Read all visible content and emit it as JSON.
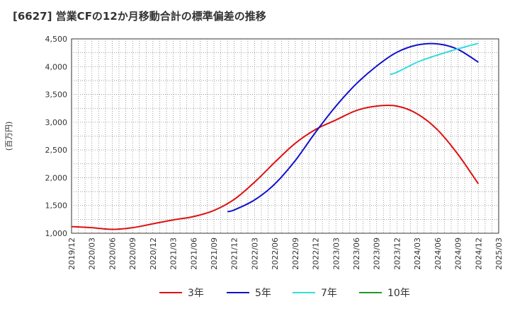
{
  "chart_data": {
    "type": "line",
    "title": "[6627]  営業CFの12か月移動合計の標準偏差の推移",
    "ylabel": "(百万円)",
    "ylim": [
      1000,
      4500
    ],
    "y_ticks": [
      "1,000",
      "1,500",
      "2,000",
      "2,500",
      "3,000",
      "3,500",
      "4,000",
      "4,500"
    ],
    "x_ticks": [
      "2019/12",
      "2020/03",
      "2020/06",
      "2020/09",
      "2020/12",
      "2021/03",
      "2021/06",
      "2021/09",
      "2021/12",
      "2022/03",
      "2022/06",
      "2022/09",
      "2022/12",
      "2023/03",
      "2023/06",
      "2023/09",
      "2023/12",
      "2024/03",
      "2024/06",
      "2024/09",
      "2024/12",
      "2025/03"
    ],
    "grid": true,
    "legend_position": "bottom",
    "series": [
      {
        "name": "3年",
        "color": "#dd1111",
        "points": [
          [
            "2019/12",
            1120
          ],
          [
            "2020/03",
            1100
          ],
          [
            "2020/06",
            1070
          ],
          [
            "2020/09",
            1100
          ],
          [
            "2020/12",
            1170
          ],
          [
            "2021/03",
            1240
          ],
          [
            "2021/06",
            1300
          ],
          [
            "2021/09",
            1410
          ],
          [
            "2021/12",
            1610
          ],
          [
            "2022/03",
            1920
          ],
          [
            "2022/06",
            2280
          ],
          [
            "2022/09",
            2620
          ],
          [
            "2022/12",
            2870
          ],
          [
            "2023/03",
            3040
          ],
          [
            "2023/06",
            3210
          ],
          [
            "2023/09",
            3290
          ],
          [
            "2023/12",
            3290
          ],
          [
            "2024/03",
            3150
          ],
          [
            "2024/06",
            2860
          ],
          [
            "2024/09",
            2420
          ],
          [
            "2024/12",
            1890
          ]
        ]
      },
      {
        "name": "5年",
        "color": "#1111cc",
        "points": [
          [
            "2021/11",
            1390
          ],
          [
            "2021/12",
            1420
          ],
          [
            "2022/03",
            1600
          ],
          [
            "2022/06",
            1890
          ],
          [
            "2022/09",
            2310
          ],
          [
            "2022/12",
            2820
          ],
          [
            "2023/03",
            3290
          ],
          [
            "2023/06",
            3690
          ],
          [
            "2023/09",
            4010
          ],
          [
            "2023/12",
            4260
          ],
          [
            "2024/03",
            4390
          ],
          [
            "2024/06",
            4410
          ],
          [
            "2024/09",
            4310
          ],
          [
            "2024/12",
            4080
          ]
        ]
      },
      {
        "name": "7年",
        "color": "#33dddd",
        "points": [
          [
            "2023/11",
            3860
          ],
          [
            "2023/12",
            3900
          ],
          [
            "2024/03",
            4080
          ],
          [
            "2024/06",
            4210
          ],
          [
            "2024/09",
            4320
          ],
          [
            "2024/12",
            4420
          ]
        ]
      },
      {
        "name": "10年",
        "color": "#229922",
        "points": []
      }
    ]
  }
}
